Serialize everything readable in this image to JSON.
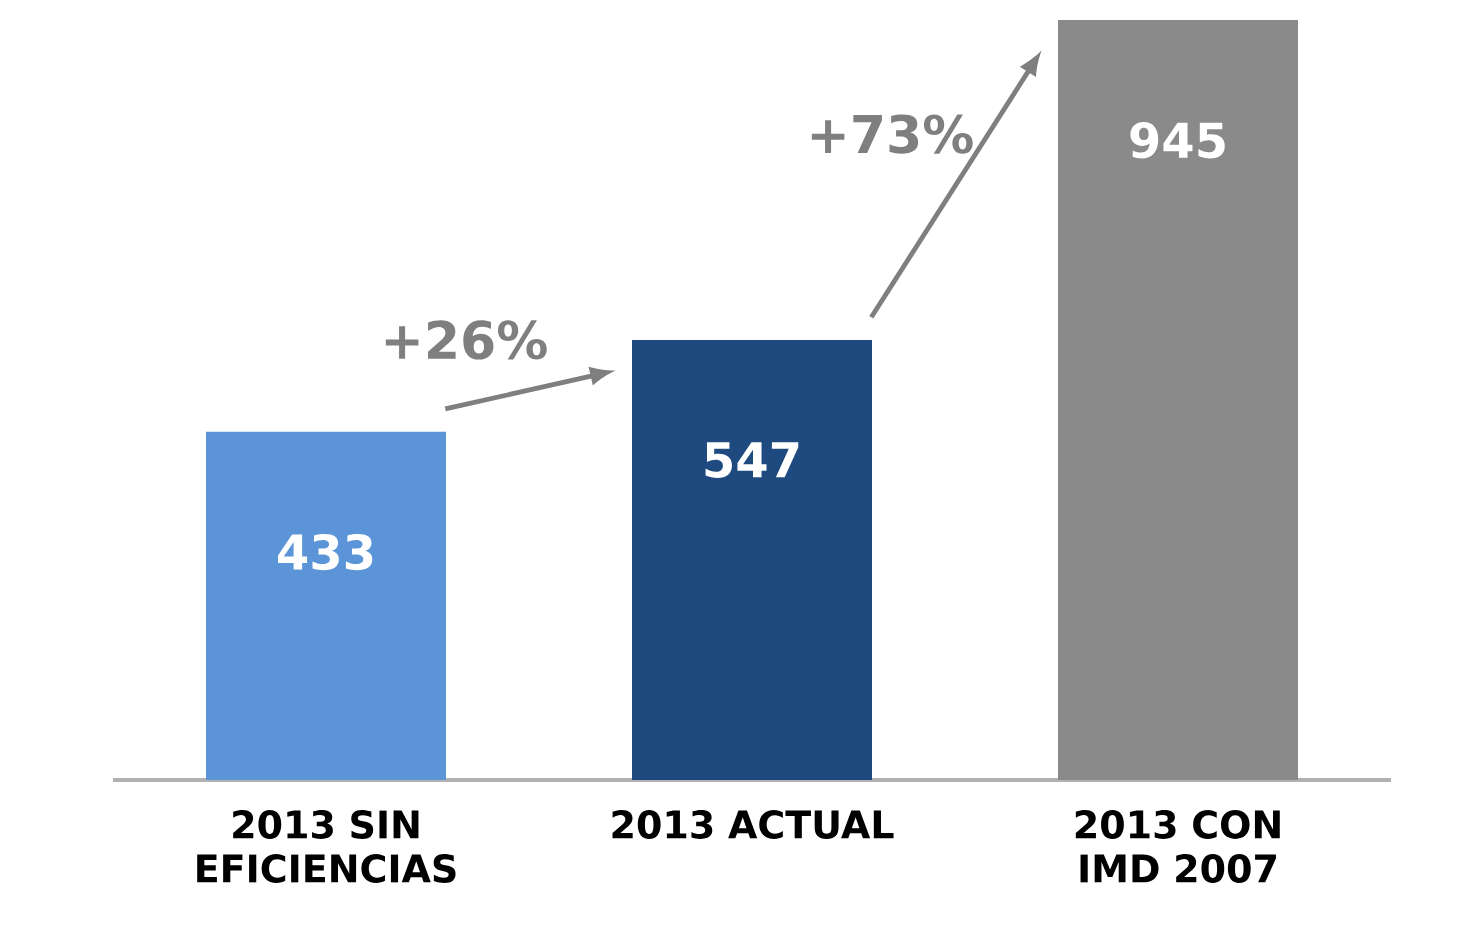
{
  "chart_data": {
    "type": "bar",
    "categories": [
      "2013 SIN EFICIENCIAS",
      "2013 ACTUAL",
      "2013 CON IMD 2007"
    ],
    "values": [
      433,
      547,
      945
    ],
    "colors": [
      "#5b95d8",
      "#1f4a7f",
      "#8a8a8a"
    ],
    "data_labels": true,
    "annotations": [
      "+26%",
      "+73%"
    ]
  }
}
